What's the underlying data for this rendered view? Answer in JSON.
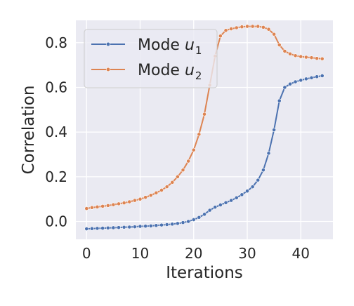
{
  "chart_data": {
    "type": "line",
    "title": "",
    "xlabel": "Iterations",
    "ylabel": "Correlation",
    "xlim": [
      -2,
      46
    ],
    "ylim": [
      -0.08,
      0.9
    ],
    "xticks": [
      0,
      10,
      20,
      30,
      40
    ],
    "yticks": [
      0.0,
      0.2,
      0.4,
      0.6,
      0.8
    ],
    "xtick_labels": [
      "0",
      "10",
      "20",
      "30",
      "40"
    ],
    "ytick_labels": [
      "0.0",
      "0.2",
      "0.4",
      "0.6",
      "0.8"
    ],
    "grid": true,
    "legend_position": "upper-left",
    "x": [
      0,
      1,
      2,
      3,
      4,
      5,
      6,
      7,
      8,
      9,
      10,
      11,
      12,
      13,
      14,
      15,
      16,
      17,
      18,
      19,
      20,
      21,
      22,
      23,
      24,
      25,
      26,
      27,
      28,
      29,
      30,
      31,
      32,
      33,
      34,
      35,
      36,
      37,
      38,
      39,
      40,
      41,
      42,
      43,
      44
    ],
    "series": [
      {
        "name_prefix": "Mode ",
        "name_var": "u",
        "name_sub": "1",
        "color": "#4c72b0",
        "values": [
          -0.033,
          -0.032,
          -0.031,
          -0.03,
          -0.029,
          -0.028,
          -0.027,
          -0.026,
          -0.025,
          -0.024,
          -0.022,
          -0.021,
          -0.02,
          -0.018,
          -0.016,
          -0.014,
          -0.012,
          -0.009,
          -0.005,
          0.0,
          0.008,
          0.018,
          0.032,
          0.05,
          0.064,
          0.074,
          0.084,
          0.094,
          0.106,
          0.12,
          0.136,
          0.155,
          0.185,
          0.23,
          0.305,
          0.41,
          0.54,
          0.6,
          0.615,
          0.625,
          0.632,
          0.638,
          0.643,
          0.648,
          0.652
        ]
      },
      {
        "name_prefix": "Mode ",
        "name_var": "u",
        "name_sub": "2",
        "color": "#dd8452",
        "values": [
          0.058,
          0.062,
          0.065,
          0.068,
          0.071,
          0.075,
          0.079,
          0.083,
          0.088,
          0.094,
          0.1,
          0.108,
          0.117,
          0.128,
          0.14,
          0.155,
          0.175,
          0.2,
          0.23,
          0.27,
          0.32,
          0.39,
          0.48,
          0.61,
          0.74,
          0.83,
          0.855,
          0.862,
          0.867,
          0.871,
          0.873,
          0.873,
          0.873,
          0.869,
          0.86,
          0.838,
          0.79,
          0.762,
          0.75,
          0.742,
          0.738,
          0.735,
          0.733,
          0.73,
          0.728
        ]
      }
    ]
  }
}
